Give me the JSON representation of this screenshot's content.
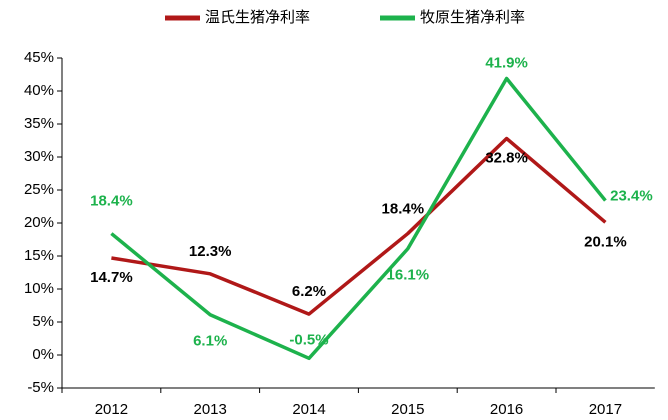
{
  "chart_data": {
    "type": "line",
    "categories": [
      "2012",
      "2013",
      "2014",
      "2015",
      "2016",
      "2017"
    ],
    "series": [
      {
        "name": "温氏生猪净利率",
        "color": "#b01818",
        "label_color": "#000000",
        "values": [
          14.7,
          12.3,
          6.2,
          18.4,
          32.8,
          20.1
        ],
        "value_labels": [
          "14.7%",
          "12.3%",
          "6.2%",
          "18.4%",
          "32.8%",
          "20.1%"
        ]
      },
      {
        "name": "牧原生猪净利率",
        "color": "#1db24c",
        "label_color": "#1db24c",
        "values": [
          18.4,
          6.1,
          -0.5,
          16.1,
          41.9,
          23.4
        ],
        "value_labels": [
          "18.4%",
          "6.1%",
          "-0.5%",
          "16.1%",
          "41.9%",
          "23.4%"
        ]
      }
    ],
    "ylim": [
      -5,
      45
    ],
    "yticks": [
      {
        "value": -5,
        "label": "-5%"
      },
      {
        "value": 0,
        "label": "0%"
      },
      {
        "value": 5,
        "label": "5%"
      },
      {
        "value": 10,
        "label": "10%"
      },
      {
        "value": 15,
        "label": "15%"
      },
      {
        "value": 20,
        "label": "20%"
      },
      {
        "value": 25,
        "label": "25%"
      },
      {
        "value": 30,
        "label": "30%"
      },
      {
        "value": 35,
        "label": "35%"
      },
      {
        "value": 40,
        "label": "40%"
      },
      {
        "value": 45,
        "label": "45%"
      }
    ],
    "legend": "top"
  }
}
